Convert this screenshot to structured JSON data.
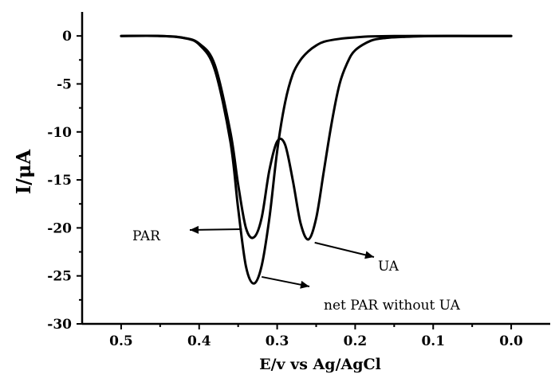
{
  "chart_data": {
    "type": "line",
    "title": "",
    "xlabel": "E/v vs Ag/AgCl",
    "ylabel": "I/μA",
    "xlim": [
      0.55,
      -0.05
    ],
    "ylim": [
      -30,
      2.5
    ],
    "x_reversed": true,
    "x_ticks": [
      0.5,
      0.4,
      0.3,
      0.2,
      0.1,
      0.0
    ],
    "x_tick_labels": [
      "0.5",
      "0.4",
      "0.3",
      "0.2",
      "0.1",
      "0.0"
    ],
    "y_ticks": [
      0,
      -5,
      -10,
      -15,
      -20,
      -25,
      -30
    ],
    "y_tick_labels": [
      "0",
      "-5",
      "-10",
      "-15",
      "-20",
      "-25",
      "-30"
    ],
    "grid": false,
    "legend": "none",
    "series": [
      {
        "x": [
          0.5,
          0.45,
          0.42,
          0.4,
          0.38,
          0.36,
          0.35,
          0.34,
          0.33,
          0.32,
          0.31,
          0.3,
          0.29,
          0.28,
          0.27,
          0.26,
          0.25,
          0.24,
          0.23,
          0.22,
          0.21,
          0.2,
          0.18,
          0.16,
          0.14,
          0.1,
          0.05,
          0.0
        ],
        "y": [
          0,
          0,
          -0.2,
          -0.8,
          -3,
          -10,
          -15.5,
          -20,
          -21,
          -19,
          -14,
          -11,
          -11.3,
          -15,
          -19.5,
          -21.2,
          -19,
          -14,
          -9,
          -5,
          -2.8,
          -1.5,
          -0.5,
          -0.2,
          -0.1,
          0,
          0,
          0
        ]
      },
      {
        "x": [
          0.5,
          0.45,
          0.42,
          0.4,
          0.38,
          0.36,
          0.35,
          0.34,
          0.33,
          0.32,
          0.31,
          0.3,
          0.29,
          0.28,
          0.27,
          0.26,
          0.25,
          0.24,
          0.22,
          0.2,
          0.18,
          0.15,
          0.1,
          0.05,
          0.0
        ],
        "y": [
          0,
          0,
          -0.2,
          -0.9,
          -3.5,
          -11,
          -18,
          -24,
          -25.8,
          -24,
          -19,
          -12,
          -7,
          -4,
          -2.5,
          -1.6,
          -1.0,
          -0.6,
          -0.3,
          -0.15,
          -0.05,
          0,
          0,
          0,
          0
        ]
      }
    ],
    "annotations": [
      {
        "text": "PAR",
        "target_x": 0.335,
        "target_y": -20.8
      },
      {
        "text": "UA",
        "target_x": 0.258,
        "target_y": -21.2
      },
      {
        "text": "net PAR without UA",
        "target_x": 0.328,
        "target_y": -25.6
      }
    ]
  }
}
